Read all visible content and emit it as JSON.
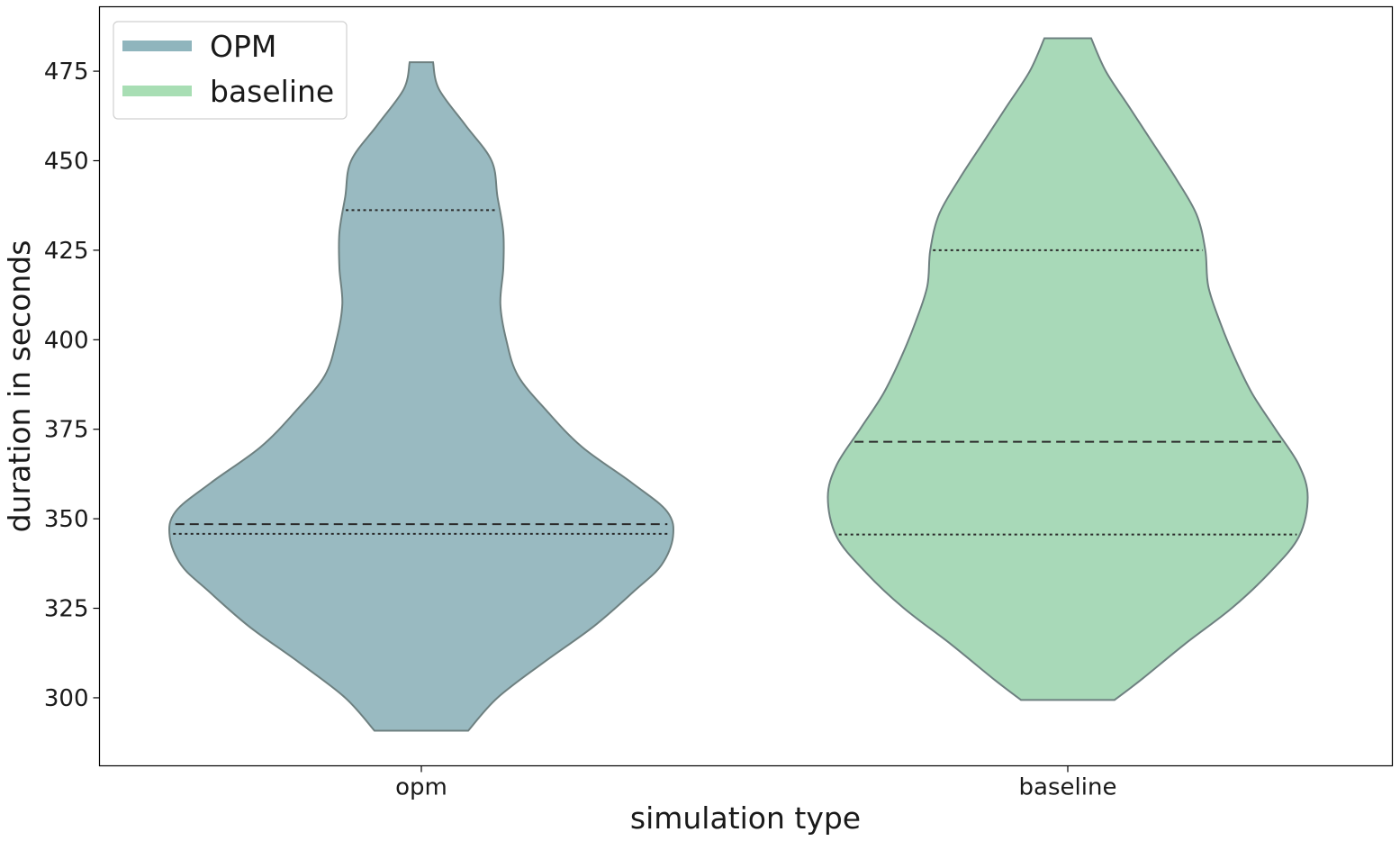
{
  "chart_data": {
    "type": "violin",
    "xlabel": "simulation type",
    "ylabel": "duration in seconds",
    "categories": [
      "opm",
      "baseline"
    ],
    "ylim": [
      281,
      493
    ],
    "yticks": [
      300,
      325,
      350,
      375,
      400,
      425,
      450,
      475
    ],
    "grid": false,
    "legend": {
      "placement": "top-left",
      "entries": [
        {
          "label": "OPM",
          "color": "#8fb5bd"
        },
        {
          "label": "baseline",
          "color": "#a8deb4"
        }
      ]
    },
    "series": [
      {
        "category": "opm",
        "color": "#99bac1",
        "min": 290.8,
        "max": 477.5,
        "q1": 345.8,
        "median": 348.5,
        "q3": 436.2,
        "density_profile": [
          [
            290.8,
            0.16
          ],
          [
            300,
            0.26
          ],
          [
            310,
            0.42
          ],
          [
            320,
            0.59
          ],
          [
            330,
            0.73
          ],
          [
            337,
            0.82
          ],
          [
            345,
            0.86
          ],
          [
            352,
            0.84
          ],
          [
            360,
            0.72
          ],
          [
            370,
            0.55
          ],
          [
            380,
            0.43
          ],
          [
            390,
            0.33
          ],
          [
            400,
            0.29
          ],
          [
            410,
            0.27
          ],
          [
            420,
            0.28
          ],
          [
            430,
            0.28
          ],
          [
            440,
            0.26
          ],
          [
            450,
            0.24
          ],
          [
            460,
            0.15
          ],
          [
            470,
            0.06
          ],
          [
            477.5,
            0.04
          ]
        ]
      },
      {
        "category": "baseline",
        "color": "#a8d9b8",
        "min": 299.4,
        "max": 484.2,
        "q1": 345.6,
        "median": 371.5,
        "q3": 425.0,
        "density_profile": [
          [
            299.4,
            0.16
          ],
          [
            305,
            0.25
          ],
          [
            315,
            0.4
          ],
          [
            325,
            0.56
          ],
          [
            335,
            0.69
          ],
          [
            345,
            0.79
          ],
          [
            356,
            0.82
          ],
          [
            365,
            0.79
          ],
          [
            375,
            0.71
          ],
          [
            385,
            0.63
          ],
          [
            395,
            0.57
          ],
          [
            405,
            0.52
          ],
          [
            415,
            0.48
          ],
          [
            425,
            0.47
          ],
          [
            435,
            0.44
          ],
          [
            445,
            0.37
          ],
          [
            455,
            0.29
          ],
          [
            465,
            0.21
          ],
          [
            475,
            0.13
          ],
          [
            484.2,
            0.08
          ]
        ]
      }
    ]
  }
}
